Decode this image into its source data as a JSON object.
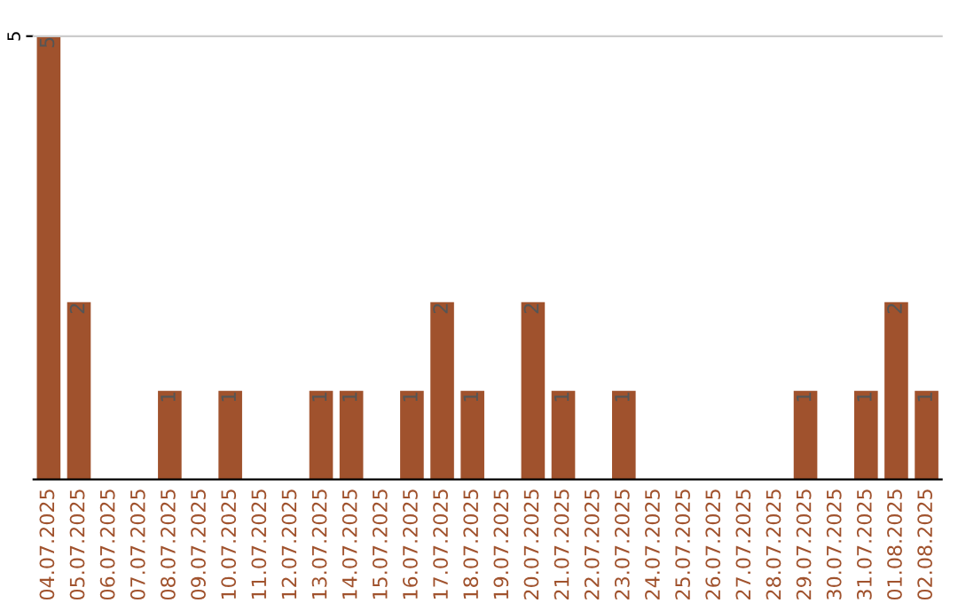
{
  "chart_data": {
    "type": "bar",
    "categories": [
      "04.07.2025",
      "05.07.2025",
      "06.07.2025",
      "07.07.2025",
      "08.07.2025",
      "09.07.2025",
      "10.07.2025",
      "11.07.2025",
      "12.07.2025",
      "13.07.2025",
      "14.07.2025",
      "15.07.2025",
      "16.07.2025",
      "17.07.2025",
      "18.07.2025",
      "19.07.2025",
      "20.07.2025",
      "21.07.2025",
      "22.07.2025",
      "23.07.2025",
      "24.07.2025",
      "25.07.2025",
      "26.07.2025",
      "27.07.2025",
      "28.07.2025",
      "29.07.2025",
      "30.07.2025",
      "31.07.2025",
      "01.08.2025",
      "02.08.2025"
    ],
    "values": [
      5,
      2,
      0,
      0,
      1,
      0,
      1,
      0,
      0,
      1,
      1,
      0,
      1,
      2,
      1,
      0,
      2,
      1,
      0,
      1,
      0,
      0,
      0,
      0,
      0,
      1,
      0,
      1,
      2,
      1
    ],
    "value_labels": [
      "5",
      "2",
      null,
      null,
      "1",
      null,
      "1",
      null,
      null,
      "1",
      "1",
      null,
      "1",
      "2",
      "1",
      null,
      "2",
      "1",
      null,
      "1",
      null,
      null,
      null,
      null,
      null,
      "1",
      null,
      "1",
      "2",
      "1"
    ],
    "color": "#a0522d",
    "ylim": [
      0,
      5
    ],
    "yticks": [
      5
    ]
  }
}
